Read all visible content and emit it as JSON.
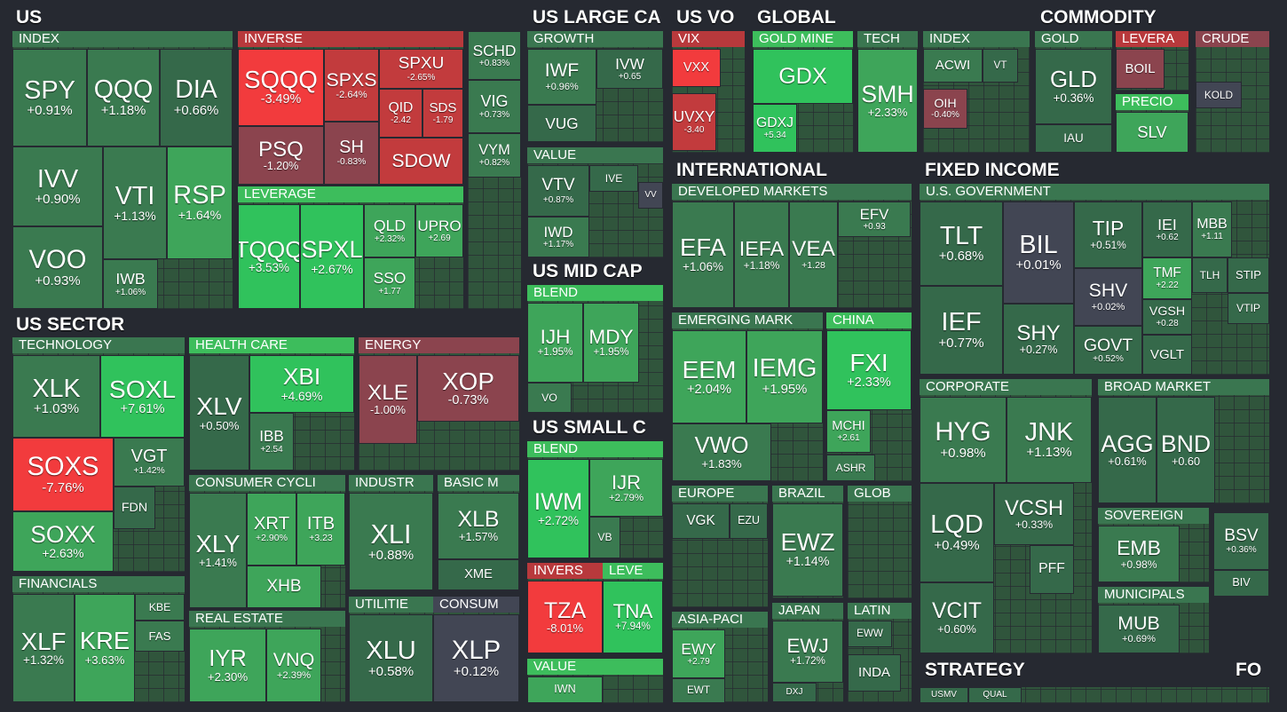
{
  "sections": [
    {
      "title": "US",
      "groups": [
        {
          "title": "INDEX",
          "tiles": [
            {
              "ticker": "SPY",
              "change": "+0.91%"
            },
            {
              "ticker": "QQQ",
              "change": "+1.18%"
            },
            {
              "ticker": "DIA",
              "change": "+0.66%"
            },
            {
              "ticker": "IVV",
              "change": "+0.90%"
            },
            {
              "ticker": "VOO",
              "change": "+0.93%"
            },
            {
              "ticker": "VTI",
              "change": "+1.13%"
            },
            {
              "ticker": "RSP",
              "change": "+1.64%"
            },
            {
              "ticker": "IWB",
              "change": "+1.06%"
            }
          ]
        },
        {
          "title": "INVERSE",
          "tiles": [
            {
              "ticker": "SQQQ",
              "change": "-3.49%"
            },
            {
              "ticker": "SPXS",
              "change": "-2.64%"
            },
            {
              "ticker": "SPXU",
              "change": "-2.65%"
            },
            {
              "ticker": "QID",
              "change": "-2.42"
            },
            {
              "ticker": "SDS",
              "change": "-1.79"
            },
            {
              "ticker": "PSQ",
              "change": "-1.20%"
            },
            {
              "ticker": "SH",
              "change": "-0.83%"
            },
            {
              "ticker": "SDOW"
            }
          ]
        },
        {
          "title": "LEVERAGE",
          "tiles": [
            {
              "ticker": "TQQQ",
              "change": "+3.53%"
            },
            {
              "ticker": "SPXL",
              "change": "+2.67%"
            },
            {
              "ticker": "QLD",
              "change": "+2.32%"
            },
            {
              "ticker": "UPRO",
              "change": "+2.69"
            },
            {
              "ticker": "SSO",
              "change": "+1.77"
            }
          ]
        },
        {
          "tiles": [
            {
              "ticker": "SCHD",
              "change": "+0.83%"
            },
            {
              "ticker": "VIG",
              "change": "+0.73%"
            },
            {
              "ticker": "VYM",
              "change": "+0.82%"
            }
          ]
        }
      ]
    },
    {
      "title": "US SECTOR",
      "groups": [
        {
          "title": "TECHNOLOGY",
          "tiles": [
            {
              "ticker": "XLK",
              "change": "+1.03%"
            },
            {
              "ticker": "SOXL",
              "change": "+7.61%"
            },
            {
              "ticker": "SOXS",
              "change": "-7.76%"
            },
            {
              "ticker": "VGT",
              "change": "+1.42%"
            },
            {
              "ticker": "FDN"
            },
            {
              "ticker": "SOXX",
              "change": "+2.63%"
            }
          ]
        },
        {
          "title": "FINANCIALS",
          "tiles": [
            {
              "ticker": "XLF",
              "change": "+1.32%"
            },
            {
              "ticker": "KRE",
              "change": "+3.63%"
            },
            {
              "ticker": "KBE"
            },
            {
              "ticker": "FAS"
            }
          ]
        },
        {
          "title": "HEALTH CARE",
          "tiles": [
            {
              "ticker": "XLV",
              "change": "+0.50%"
            },
            {
              "ticker": "XBI",
              "change": "+4.69%"
            },
            {
              "ticker": "IBB",
              "change": "+2.54"
            }
          ]
        },
        {
          "title": "ENERGY",
          "tiles": [
            {
              "ticker": "XLE",
              "change": "-1.00%"
            },
            {
              "ticker": "XOP",
              "change": "-0.73%"
            }
          ]
        },
        {
          "title": "CONSUMER CYCLI",
          "tiles": [
            {
              "ticker": "XLY",
              "change": "+1.41%"
            },
            {
              "ticker": "XRT",
              "change": "+2.90%"
            },
            {
              "ticker": "ITB",
              "change": "+3.23"
            },
            {
              "ticker": "XHB"
            }
          ]
        },
        {
          "title": "REAL ESTATE",
          "tiles": [
            {
              "ticker": "IYR",
              "change": "+2.30%"
            },
            {
              "ticker": "VNQ",
              "change": "+2.39%"
            }
          ]
        },
        {
          "title": "INDUSTR",
          "tiles": [
            {
              "ticker": "XLI",
              "change": "+0.88%"
            }
          ]
        },
        {
          "title": "BASIC M",
          "tiles": [
            {
              "ticker": "XLB",
              "change": "+1.57%"
            },
            {
              "ticker": "XME"
            }
          ]
        },
        {
          "title": "UTILITIE",
          "tiles": [
            {
              "ticker": "XLU",
              "change": "+0.58%"
            }
          ]
        },
        {
          "title": "CONSUM",
          "tiles": [
            {
              "ticker": "XLP",
              "change": "+0.12%"
            }
          ]
        }
      ]
    },
    {
      "title": "US LARGE CA",
      "groups": [
        {
          "title": "GROWTH",
          "tiles": [
            {
              "ticker": "IWF",
              "change": "+0.96%"
            },
            {
              "ticker": "IVW",
              "change": "+0.65"
            },
            {
              "ticker": "VUG"
            }
          ]
        },
        {
          "title": "VALUE",
          "tiles": [
            {
              "ticker": "VTV",
              "change": "+0.87%"
            },
            {
              "ticker": "IVE"
            },
            {
              "ticker": "VV"
            },
            {
              "ticker": "IWD",
              "change": "+1.17%"
            }
          ]
        }
      ]
    },
    {
      "title": "US MID CAP",
      "groups": [
        {
          "title": "BLEND",
          "tiles": [
            {
              "ticker": "IJH",
              "change": "+1.95%"
            },
            {
              "ticker": "MDY",
              "change": "+1.95%"
            },
            {
              "ticker": "VO"
            }
          ]
        }
      ]
    },
    {
      "title": "US SMALL C",
      "groups": [
        {
          "title": "BLEND",
          "tiles": [
            {
              "ticker": "IWM",
              "change": "+2.72%"
            },
            {
              "ticker": "IJR",
              "change": "+2.79%"
            },
            {
              "ticker": "VB"
            }
          ]
        },
        {
          "title": "INVERS",
          "tiles": [
            {
              "ticker": "TZA",
              "change": "-8.01%"
            }
          ]
        },
        {
          "title": "LEVE",
          "tiles": [
            {
              "ticker": "TNA",
              "change": "+7.94%"
            }
          ]
        },
        {
          "title": "VALUE",
          "tiles": [
            {
              "ticker": "IWN"
            }
          ]
        }
      ]
    },
    {
      "title": "US VO",
      "groups": [
        {
          "title": "VIX",
          "tiles": [
            {
              "ticker": "VXX"
            },
            {
              "ticker": "UVXY",
              "change": "-3.40"
            }
          ]
        }
      ]
    },
    {
      "title": "GLOBAL",
      "groups": [
        {
          "title": "GOLD MINE",
          "tiles": [
            {
              "ticker": "GDX"
            },
            {
              "ticker": "GDXJ",
              "change": "+5.34"
            }
          ]
        },
        {
          "title": "TECH",
          "tiles": [
            {
              "ticker": "SMH",
              "change": "+2.33%"
            }
          ]
        },
        {
          "title": "INDEX",
          "tiles": [
            {
              "ticker": "ACWI"
            },
            {
              "ticker": "VT"
            },
            {
              "ticker": "OIH",
              "change": "-0.40%"
            }
          ]
        }
      ]
    },
    {
      "title": "COMMODITY",
      "groups": [
        {
          "title": "GOLD",
          "tiles": [
            {
              "ticker": "GLD",
              "change": "+0.36%"
            },
            {
              "ticker": "IAU"
            }
          ]
        },
        {
          "title": "LEVERA",
          "tiles": [
            {
              "ticker": "BOIL"
            }
          ]
        },
        {
          "title": "PRECIO",
          "tiles": [
            {
              "ticker": "SLV"
            }
          ]
        },
        {
          "title": "CRUDE",
          "tiles": [
            {
              "ticker": "KOLD"
            }
          ]
        }
      ]
    },
    {
      "title": "INTERNATIONAL",
      "groups": [
        {
          "title": "DEVELOPED MARKETS",
          "tiles": [
            {
              "ticker": "EFA",
              "change": "+1.06%"
            },
            {
              "ticker": "IEFA",
              "change": "+1.18%"
            },
            {
              "ticker": "VEA",
              "change": "+1.28"
            },
            {
              "ticker": "EFV",
              "change": "+0.93"
            }
          ]
        },
        {
          "title": "EMERGING MARK",
          "tiles": [
            {
              "ticker": "EEM",
              "change": "+2.04%"
            },
            {
              "ticker": "IEMG",
              "change": "+1.95%"
            },
            {
              "ticker": "VWO",
              "change": "+1.83%"
            }
          ]
        },
        {
          "title": "CHINA",
          "tiles": [
            {
              "ticker": "FXI",
              "change": "+2.33%"
            },
            {
              "ticker": "MCHI",
              "change": "+2.61"
            },
            {
              "ticker": "ASHR"
            }
          ]
        },
        {
          "title": "EUROPE",
          "tiles": [
            {
              "ticker": "VGK"
            },
            {
              "ticker": "EZU"
            }
          ]
        },
        {
          "title": "BRAZIL",
          "tiles": [
            {
              "ticker": "EWZ",
              "change": "+1.14%"
            }
          ]
        },
        {
          "title": "GLOB",
          "tiles": []
        },
        {
          "title": "ASIA-PACI",
          "tiles": [
            {
              "ticker": "EWY",
              "change": "+2.79"
            },
            {
              "ticker": "EWT"
            }
          ]
        },
        {
          "title": "JAPAN",
          "tiles": [
            {
              "ticker": "EWJ",
              "change": "+1.72%"
            },
            {
              "ticker": "DXJ"
            }
          ]
        },
        {
          "title": "LATIN",
          "tiles": [
            {
              "ticker": "EWW"
            },
            {
              "ticker": "INDA"
            }
          ]
        }
      ]
    },
    {
      "title": "FIXED INCOME",
      "groups": [
        {
          "title": "U.S. GOVERNMENT",
          "tiles": [
            {
              "ticker": "TLT",
              "change": "+0.68%"
            },
            {
              "ticker": "BIL",
              "change": "+0.01%"
            },
            {
              "ticker": "TIP",
              "change": "+0.51%"
            },
            {
              "ticker": "IEI",
              "change": "+0.62"
            },
            {
              "ticker": "MBB",
              "change": "+1.11"
            },
            {
              "ticker": "TLH"
            },
            {
              "ticker": "STIP"
            },
            {
              "ticker": "IEF",
              "change": "+0.77%"
            },
            {
              "ticker": "SHY",
              "change": "+0.27%"
            },
            {
              "ticker": "SHV",
              "change": "+0.02%"
            },
            {
              "ticker": "TMF",
              "change": "+2.22"
            },
            {
              "ticker": "VGSH",
              "change": "+0.28"
            },
            {
              "ticker": "VTIP"
            },
            {
              "ticker": "GOVT",
              "change": "+0.52%"
            },
            {
              "ticker": "VGLT"
            }
          ]
        },
        {
          "title": "CORPORATE",
          "tiles": [
            {
              "ticker": "HYG",
              "change": "+0.98%"
            },
            {
              "ticker": "JNK",
              "change": "+1.13%"
            },
            {
              "ticker": "LQD",
              "change": "+0.49%"
            },
            {
              "ticker": "VCSH",
              "change": "+0.33%"
            },
            {
              "ticker": "PFF"
            },
            {
              "ticker": "VCIT",
              "change": "+0.60%"
            }
          ]
        },
        {
          "title": "BROAD MARKET",
          "tiles": [
            {
              "ticker": "AGG",
              "change": "+0.61%"
            },
            {
              "ticker": "BND",
              "change": "+0.60"
            }
          ]
        },
        {
          "title": "SOVEREIGN",
          "tiles": [
            {
              "ticker": "EMB",
              "change": "+0.98%"
            }
          ]
        },
        {
          "tiles": [
            {
              "ticker": "BSV",
              "change": "+0.36%"
            },
            {
              "ticker": "BIV"
            }
          ]
        },
        {
          "title": "MUNICIPALS",
          "tiles": [
            {
              "ticker": "MUB",
              "change": "+0.69%"
            }
          ]
        }
      ]
    },
    {
      "title": "STRATEGY",
      "groups": [
        {
          "tiles": [
            {
              "ticker": "USMV"
            },
            {
              "ticker": "QUAL"
            }
          ]
        }
      ]
    },
    {
      "title": "FO",
      "groups": []
    }
  ]
}
